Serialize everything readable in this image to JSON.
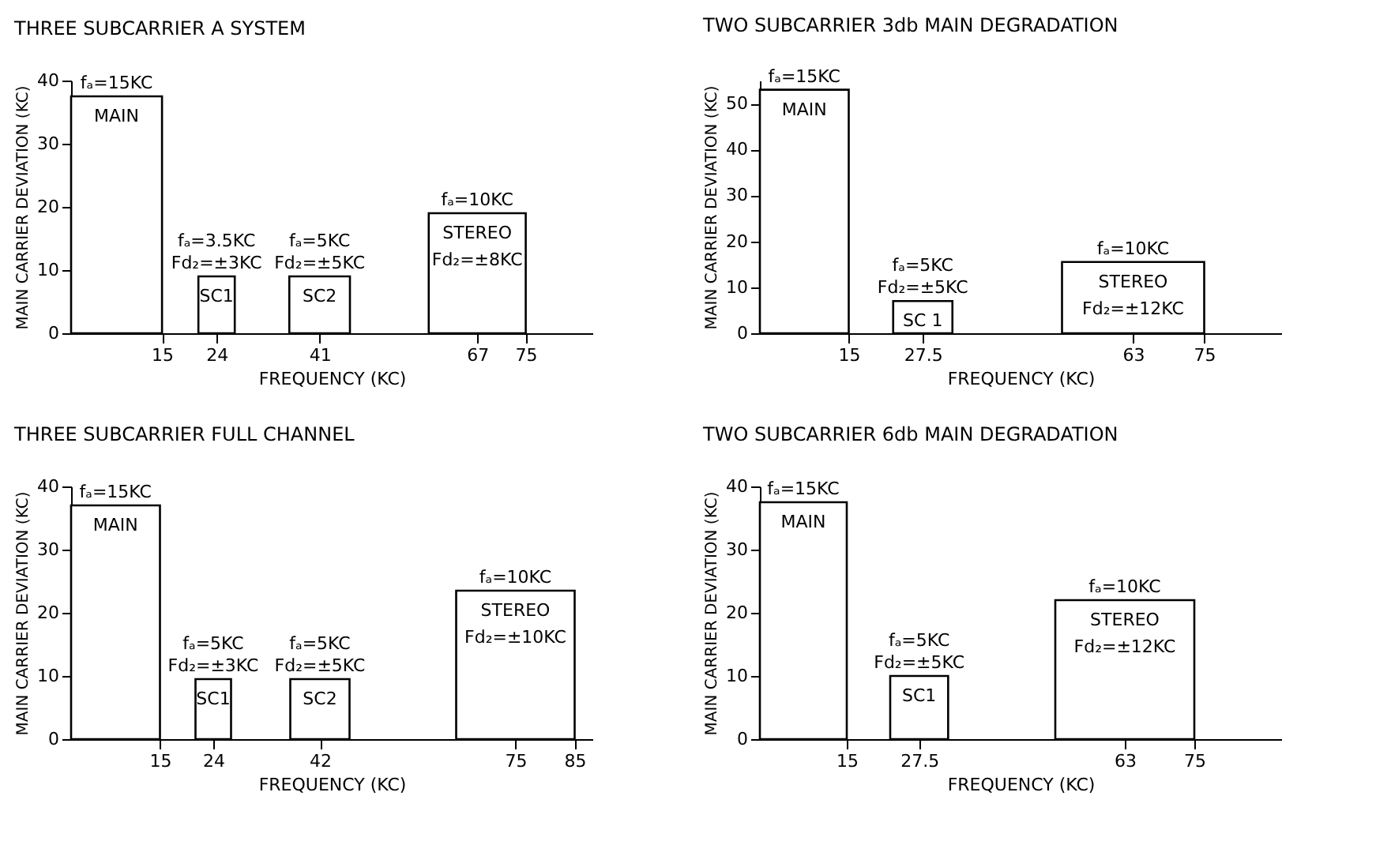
{
  "chart_data": [
    {
      "type": "histogram",
      "title": "THREE SUBCARRIER A SYSTEM",
      "xlabel": "FREQUENCY (KC)",
      "ylabel": "MAIN CARRIER DEVIATION (KC)",
      "bins": [
        0,
        15,
        21,
        27,
        36,
        46,
        59,
        75
      ],
      "values": [
        37.5,
        null,
        9,
        null,
        9,
        null,
        19
      ],
      "xlim": [
        0,
        86
      ],
      "xticks": [
        15,
        24,
        41,
        67,
        75
      ],
      "ylim": [
        0,
        40
      ],
      "yticks": [
        0,
        10,
        20,
        30,
        40
      ],
      "annotations": [
        {
          "text": "fₐ=15KC",
          "x": 7.5,
          "y": 37.5
        },
        {
          "text": "MAIN",
          "x": 7.5,
          "y": 37.5
        },
        {
          "text": "fₐ=3.5KC",
          "x": 24,
          "y": 9
        },
        {
          "text": "Fd₂=±3KC",
          "x": 24,
          "y": 9
        },
        {
          "text": "SC1",
          "x": 24,
          "y": 9
        },
        {
          "text": "fₐ=5KC",
          "x": 41,
          "y": 9
        },
        {
          "text": "Fd₂=±5KC",
          "x": 41,
          "y": 9
        },
        {
          "text": "SC2",
          "x": 41,
          "y": 9
        },
        {
          "text": "fₐ=10KC",
          "x": 67,
          "y": 19
        },
        {
          "text": "STEREO",
          "x": 67,
          "y": 19
        },
        {
          "text": "Fd₂=±8KC",
          "x": 67,
          "y": 19
        }
      ]
    },
    {
      "type": "histogram",
      "title": "TWO SUBCARRIER 3db MAIN DEGRADATION",
      "xlabel": "FREQUENCY (KC)",
      "ylabel": "MAIN CARRIER DEVIATION (KC)",
      "bins": [
        0,
        15,
        22.5,
        32.5,
        51,
        75
      ],
      "values": [
        53,
        null,
        7,
        null,
        15.5
      ],
      "xlim": [
        0,
        88
      ],
      "xticks": [
        15,
        27.5,
        63,
        75
      ],
      "ylim": [
        0,
        55
      ],
      "yticks": [
        0,
        10,
        20,
        30,
        40,
        50
      ],
      "annotations": [
        {
          "text": "fₐ=15KC",
          "x": 7.5,
          "y": 53
        },
        {
          "text": "MAIN",
          "x": 7.5,
          "y": 53
        },
        {
          "text": "fₐ=5KC",
          "x": 27.5,
          "y": 7
        },
        {
          "text": "Fd₂=±5KC",
          "x": 27.5,
          "y": 7
        },
        {
          "text": "SC 1",
          "x": 27.5,
          "y": 7
        },
        {
          "text": "fₐ=10KC",
          "x": 63,
          "y": 15.5
        },
        {
          "text": "STEREO",
          "x": 63,
          "y": 15.5
        },
        {
          "text": "Fd₂=±12KC",
          "x": 63,
          "y": 15.5
        }
      ]
    },
    {
      "type": "histogram",
      "title": "THREE SUBCARRIER FULL CHANNEL",
      "xlabel": "FREQUENCY (KC)",
      "ylabel": "MAIN CARRIER DEVIATION (KC)",
      "bins": [
        0,
        15,
        21,
        27,
        37,
        47,
        65,
        85
      ],
      "values": [
        37,
        null,
        9.5,
        null,
        9.5,
        null,
        23.5
      ],
      "xlim": [
        0,
        88
      ],
      "xticks": [
        15,
        24,
        42,
        75,
        85
      ],
      "ylim": [
        0,
        40
      ],
      "yticks": [
        0,
        10,
        20,
        30,
        40
      ],
      "annotations": [
        {
          "text": "fₐ=15KC",
          "x": 7.5,
          "y": 37
        },
        {
          "text": "MAIN",
          "x": 7.5,
          "y": 37
        },
        {
          "text": "fₐ=5KC",
          "x": 24,
          "y": 9.5
        },
        {
          "text": "Fd₂=±3KC",
          "x": 24,
          "y": 9.5
        },
        {
          "text": "SC1",
          "x": 24,
          "y": 9.5
        },
        {
          "text": "fₐ=5KC",
          "x": 42,
          "y": 9.5
        },
        {
          "text": "Fd₂=±5KC",
          "x": 42,
          "y": 9.5
        },
        {
          "text": "SC2",
          "x": 42,
          "y": 9.5
        },
        {
          "text": "fₐ=10KC",
          "x": 75,
          "y": 23.5
        },
        {
          "text": "STEREO",
          "x": 75,
          "y": 23.5
        },
        {
          "text": "Fd₂=±10KC",
          "x": 75,
          "y": 23.5
        }
      ]
    },
    {
      "type": "histogram",
      "title": "TWO SUBCARRIER 6db MAIN DEGRADATION",
      "xlabel": "FREQUENCY (KC)",
      "ylabel": "MAIN CARRIER DEVIATION (KC)",
      "bins": [
        0,
        15,
        22.5,
        32.5,
        51,
        75
      ],
      "values": [
        37.5,
        null,
        10,
        null,
        22
      ],
      "xlim": [
        0,
        90
      ],
      "xticks": [
        15,
        27.5,
        63,
        75
      ],
      "ylim": [
        0,
        40
      ],
      "yticks": [
        0,
        10,
        20,
        30,
        40
      ],
      "annotations": [
        {
          "text": "fₐ=15KC",
          "x": 7.5,
          "y": 37.5
        },
        {
          "text": "MAIN",
          "x": 7.5,
          "y": 37.5
        },
        {
          "text": "fₐ=5KC",
          "x": 27.5,
          "y": 10
        },
        {
          "text": "Fd₂=±5KC",
          "x": 27.5,
          "y": 10
        },
        {
          "text": "SC1",
          "x": 27.5,
          "y": 10
        },
        {
          "text": "fₐ=10KC",
          "x": 63,
          "y": 22
        },
        {
          "text": "STEREO",
          "x": 63,
          "y": 22
        },
        {
          "text": "Fd₂=±12KC",
          "x": 63,
          "y": 22
        }
      ]
    }
  ]
}
